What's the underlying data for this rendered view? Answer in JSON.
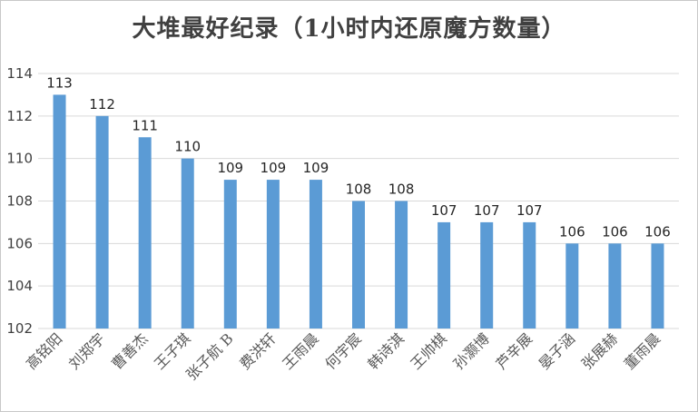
{
  "chart_data": {
    "type": "bar",
    "title": "大堆最好纪录（1小时内还原魔方数量）",
    "xlabel": "",
    "ylabel": "",
    "ylim": [
      102,
      114
    ],
    "yticks": [
      102,
      104,
      106,
      108,
      110,
      112,
      114
    ],
    "grid": true,
    "bar_color": "#5b9bd5",
    "categories": [
      "高铭阳",
      "刘郑宇",
      "曹善杰",
      "王子琪",
      "张子航 B",
      "费洪轩",
      "王雨晨",
      "何宇宸",
      "韩诗淇",
      "王帅棋",
      "孙灏博",
      "芦辛展",
      "晏子涵",
      "张展赫",
      "董雨晨"
    ],
    "values": [
      113,
      112,
      111,
      110,
      109,
      109,
      109,
      108,
      108,
      107,
      107,
      107,
      106,
      106,
      106
    ]
  }
}
